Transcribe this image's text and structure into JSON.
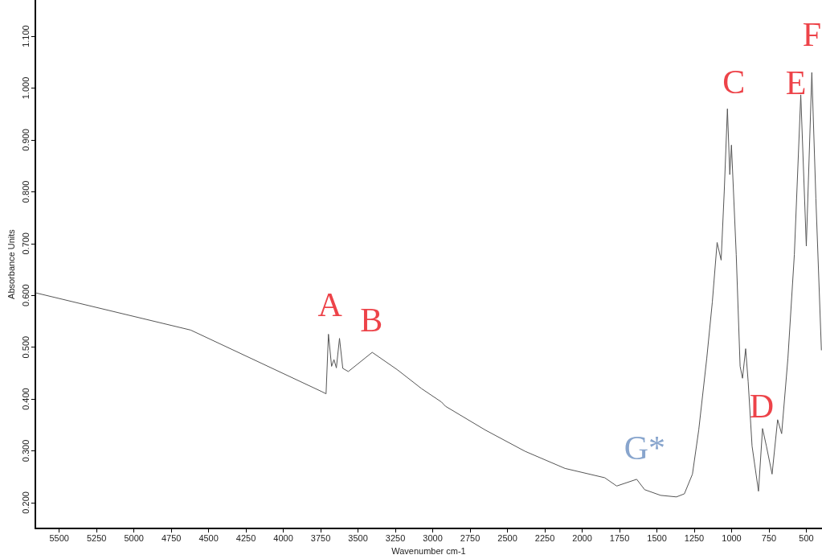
{
  "chart_data": {
    "type": "line",
    "xlabel": "Wavenumber cm-1",
    "ylabel": "Absorbance Units",
    "x": [
      5660,
      4620,
      3741,
      3714,
      3698,
      3677,
      3661,
      3645,
      3624,
      3602,
      3565,
      3405,
      3235,
      3075,
      2941,
      2915,
      2648,
      2382,
      2115,
      1849,
      1769,
      1635,
      1582,
      1475,
      1369,
      1316,
      1262,
      1220,
      1166,
      1129,
      1097,
      1070,
      1049,
      1028,
      1012,
      1001,
      969,
      943,
      927,
      906,
      889,
      863,
      820,
      793,
      767,
      729,
      692,
      665,
      623,
      580,
      537,
      500,
      463,
      436,
      399
    ],
    "series": [
      {
        "color": "#555555",
        "values": [
          0.605,
          0.533,
          0.414,
          0.41,
          0.525,
          0.463,
          0.476,
          0.46,
          0.517,
          0.459,
          0.453,
          0.49,
          0.456,
          0.42,
          0.394,
          0.386,
          0.34,
          0.299,
          0.266,
          0.248,
          0.232,
          0.245,
          0.225,
          0.214,
          0.211,
          0.217,
          0.255,
          0.34,
          0.479,
          0.587,
          0.702,
          0.668,
          0.802,
          0.96,
          0.833,
          0.89,
          0.679,
          0.463,
          0.44,
          0.497,
          0.433,
          0.309,
          0.222,
          0.343,
          0.309,
          0.255,
          0.36,
          0.333,
          0.479,
          0.679,
          0.987,
          0.695,
          1.03,
          0.787,
          0.494
        ]
      }
    ],
    "xlim": [
      5660,
      395
    ],
    "ylim": [
      0.15,
      1.17
    ],
    "xticks": [
      5500,
      5250,
      5000,
      4750,
      4500,
      4250,
      4000,
      3750,
      3500,
      3250,
      3000,
      2750,
      2500,
      2250,
      2000,
      1750,
      1500,
      1250,
      1000,
      750,
      500
    ],
    "yticks": [
      {
        "value": 0.2,
        "label": "0.200"
      },
      {
        "value": 0.3,
        "label": "0.300"
      },
      {
        "value": 0.4,
        "label": "0.400"
      },
      {
        "value": 0.5,
        "label": "0.500"
      },
      {
        "value": 0.6,
        "label": "0.600"
      },
      {
        "value": 0.7,
        "label": "0.700"
      },
      {
        "value": 0.8,
        "label": "0.800"
      },
      {
        "value": 0.9,
        "label": "0.900"
      },
      {
        "value": 1.0,
        "label": "1.000"
      },
      {
        "value": 1.1,
        "label": "1.100"
      }
    ],
    "grid": false,
    "marker": "none",
    "line_style": "solid",
    "annotations": [
      {
        "text": "A",
        "x": 3698,
        "y": 0.525
      },
      {
        "text": "B",
        "x": 3405,
        "y": 0.49
      },
      {
        "text": "C",
        "x": 1028,
        "y": 0.96
      },
      {
        "text": "D",
        "x": 793,
        "y": 0.343
      },
      {
        "text": "E",
        "x": 537,
        "y": 0.987
      },
      {
        "text": "F",
        "x": 463,
        "y": 1.03
      },
      {
        "text": "G*",
        "x": 1635,
        "y": 0.245
      }
    ]
  }
}
